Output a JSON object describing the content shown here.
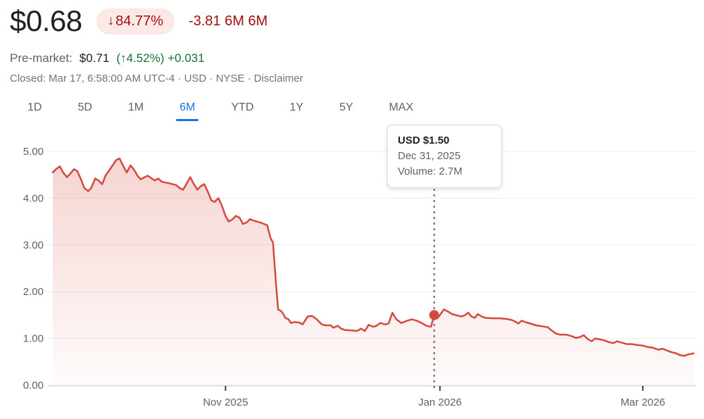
{
  "header": {
    "price": "$0.68",
    "change_badge_arrow": "↓",
    "change_badge_value": "84.77%",
    "change_detail": "-3.81 6M 6M",
    "premarket_label": "Pre-market:",
    "premarket_price": "$0.71",
    "premarket_change": "(↑4.52%) +0.031",
    "status_prefix": "Closed: Mar 17, 6:58:00 AM UTC-4 · USD · NYSE ·",
    "disclaimer_label": "Disclaimer",
    "colors": {
      "negative": "#a50e0e",
      "negative_bg": "#fce8e6",
      "positive": "#137333"
    }
  },
  "tabs": {
    "items": [
      "1D",
      "5D",
      "1M",
      "6M",
      "YTD",
      "1Y",
      "5Y",
      "MAX"
    ],
    "active": "6M",
    "active_color": "#1a73e8"
  },
  "tooltip": {
    "price": "USD $1.50",
    "date": "Dec 31, 2025",
    "volume": "Volume: 2.7M"
  },
  "chart_data": {
    "type": "area",
    "title": "Stock price, 6-month range, declining from ~4.55 to 0.68 USD",
    "xlabel": "",
    "ylabel": "USD",
    "ylim": [
      0,
      5
    ],
    "grid": true,
    "y_ticks": [
      {
        "value": 0,
        "label": "0.00"
      },
      {
        "value": 1,
        "label": "1.00"
      },
      {
        "value": 2,
        "label": "2.00"
      },
      {
        "value": 3,
        "label": "3.00"
      },
      {
        "value": 4,
        "label": "4.00"
      },
      {
        "value": 5,
        "label": "5.00"
      }
    ],
    "x_ticks": [
      {
        "label": "Nov 2025",
        "pos": 0.269
      },
      {
        "label": "Jan 2026",
        "pos": 0.603
      },
      {
        "label": "Mar 2026",
        "pos": 0.919
      }
    ],
    "line_color": "#d6493d",
    "fill_top_opacity": 0.24,
    "fill_bottom_opacity": 0.02,
    "grid_color": "#ebedef",
    "axis_color": "#dadce0",
    "tick_color": "#3c4043",
    "label_color": "#5f6368",
    "crosshair": {
      "pos": 0.594,
      "color": "#5f6368"
    },
    "marker": {
      "pos": 0.594,
      "value": 1.5,
      "date": "Dec 31, 2025",
      "volume": "2.7M"
    },
    "points": [
      [
        0.0,
        4.55
      ],
      [
        0.005,
        4.62
      ],
      [
        0.011,
        4.68
      ],
      [
        0.016,
        4.55
      ],
      [
        0.022,
        4.45
      ],
      [
        0.027,
        4.52
      ],
      [
        0.033,
        4.62
      ],
      [
        0.038,
        4.58
      ],
      [
        0.044,
        4.4
      ],
      [
        0.049,
        4.22
      ],
      [
        0.055,
        4.15
      ],
      [
        0.06,
        4.22
      ],
      [
        0.066,
        4.42
      ],
      [
        0.071,
        4.38
      ],
      [
        0.077,
        4.3
      ],
      [
        0.082,
        4.48
      ],
      [
        0.088,
        4.6
      ],
      [
        0.093,
        4.7
      ],
      [
        0.099,
        4.82
      ],
      [
        0.104,
        4.85
      ],
      [
        0.11,
        4.68
      ],
      [
        0.115,
        4.55
      ],
      [
        0.121,
        4.7
      ],
      [
        0.126,
        4.62
      ],
      [
        0.132,
        4.48
      ],
      [
        0.137,
        4.4
      ],
      [
        0.143,
        4.45
      ],
      [
        0.148,
        4.48
      ],
      [
        0.154,
        4.42
      ],
      [
        0.159,
        4.38
      ],
      [
        0.164,
        4.42
      ],
      [
        0.17,
        4.35
      ],
      [
        0.181,
        4.32
      ],
      [
        0.192,
        4.28
      ],
      [
        0.197,
        4.22
      ],
      [
        0.203,
        4.18
      ],
      [
        0.208,
        4.3
      ],
      [
        0.214,
        4.45
      ],
      [
        0.219,
        4.32
      ],
      [
        0.225,
        4.18
      ],
      [
        0.23,
        4.25
      ],
      [
        0.236,
        4.3
      ],
      [
        0.241,
        4.15
      ],
      [
        0.247,
        3.95
      ],
      [
        0.252,
        3.92
      ],
      [
        0.258,
        4.0
      ],
      [
        0.263,
        3.85
      ],
      [
        0.269,
        3.62
      ],
      [
        0.274,
        3.5
      ],
      [
        0.28,
        3.55
      ],
      [
        0.285,
        3.62
      ],
      [
        0.291,
        3.58
      ],
      [
        0.296,
        3.45
      ],
      [
        0.302,
        3.48
      ],
      [
        0.307,
        3.55
      ],
      [
        0.313,
        3.52
      ],
      [
        0.323,
        3.48
      ],
      [
        0.334,
        3.42
      ],
      [
        0.339,
        3.15
      ],
      [
        0.343,
        3.05
      ],
      [
        0.348,
        2.1
      ],
      [
        0.351,
        1.62
      ],
      [
        0.356,
        1.58
      ],
      [
        0.36,
        1.5
      ],
      [
        0.362,
        1.44
      ],
      [
        0.367,
        1.41
      ],
      [
        0.371,
        1.33
      ],
      [
        0.376,
        1.35
      ],
      [
        0.384,
        1.34
      ],
      [
        0.389,
        1.3
      ],
      [
        0.397,
        1.47
      ],
      [
        0.404,
        1.48
      ],
      [
        0.411,
        1.41
      ],
      [
        0.419,
        1.3
      ],
      [
        0.425,
        1.28
      ],
      [
        0.433,
        1.28
      ],
      [
        0.437,
        1.23
      ],
      [
        0.444,
        1.27
      ],
      [
        0.449,
        1.21
      ],
      [
        0.455,
        1.18
      ],
      [
        0.466,
        1.17
      ],
      [
        0.474,
        1.16
      ],
      [
        0.48,
        1.21
      ],
      [
        0.486,
        1.16
      ],
      [
        0.492,
        1.29
      ],
      [
        0.499,
        1.25
      ],
      [
        0.504,
        1.27
      ],
      [
        0.51,
        1.33
      ],
      [
        0.518,
        1.3
      ],
      [
        0.523,
        1.32
      ],
      [
        0.529,
        1.55
      ],
      [
        0.535,
        1.41
      ],
      [
        0.543,
        1.33
      ],
      [
        0.552,
        1.38
      ],
      [
        0.559,
        1.41
      ],
      [
        0.567,
        1.38
      ],
      [
        0.576,
        1.32
      ],
      [
        0.582,
        1.27
      ],
      [
        0.589,
        1.25
      ],
      [
        0.594,
        1.5
      ],
      [
        0.599,
        1.43
      ],
      [
        0.604,
        1.52
      ],
      [
        0.609,
        1.62
      ],
      [
        0.615,
        1.58
      ],
      [
        0.622,
        1.52
      ],
      [
        0.628,
        1.5
      ],
      [
        0.636,
        1.47
      ],
      [
        0.641,
        1.49
      ],
      [
        0.647,
        1.55
      ],
      [
        0.652,
        1.47
      ],
      [
        0.657,
        1.44
      ],
      [
        0.662,
        1.52
      ],
      [
        0.668,
        1.47
      ],
      [
        0.674,
        1.44
      ],
      [
        0.685,
        1.43
      ],
      [
        0.696,
        1.43
      ],
      [
        0.705,
        1.42
      ],
      [
        0.713,
        1.4
      ],
      [
        0.719,
        1.37
      ],
      [
        0.725,
        1.32
      ],
      [
        0.73,
        1.38
      ],
      [
        0.738,
        1.34
      ],
      [
        0.746,
        1.31
      ],
      [
        0.753,
        1.28
      ],
      [
        0.762,
        1.26
      ],
      [
        0.771,
        1.24
      ],
      [
        0.776,
        1.18
      ],
      [
        0.783,
        1.11
      ],
      [
        0.79,
        1.08
      ],
      [
        0.8,
        1.08
      ],
      [
        0.808,
        1.05
      ],
      [
        0.815,
        1.01
      ],
      [
        0.821,
        1.03
      ],
      [
        0.827,
        1.07
      ],
      [
        0.833,
        0.99
      ],
      [
        0.839,
        0.94
      ],
      [
        0.845,
        1.0
      ],
      [
        0.852,
        0.98
      ],
      [
        0.859,
        0.96
      ],
      [
        0.866,
        0.92
      ],
      [
        0.873,
        0.9
      ],
      [
        0.879,
        0.94
      ],
      [
        0.886,
        0.91
      ],
      [
        0.894,
        0.88
      ],
      [
        0.902,
        0.88
      ],
      [
        0.91,
        0.86
      ],
      [
        0.918,
        0.85
      ],
      [
        0.926,
        0.82
      ],
      [
        0.935,
        0.8
      ],
      [
        0.943,
        0.76
      ],
      [
        0.95,
        0.78
      ],
      [
        0.957,
        0.74
      ],
      [
        0.963,
        0.71
      ],
      [
        0.971,
        0.68
      ],
      [
        0.977,
        0.64
      ],
      [
        0.984,
        0.63
      ],
      [
        0.99,
        0.66
      ],
      [
        0.998,
        0.68
      ]
    ]
  }
}
